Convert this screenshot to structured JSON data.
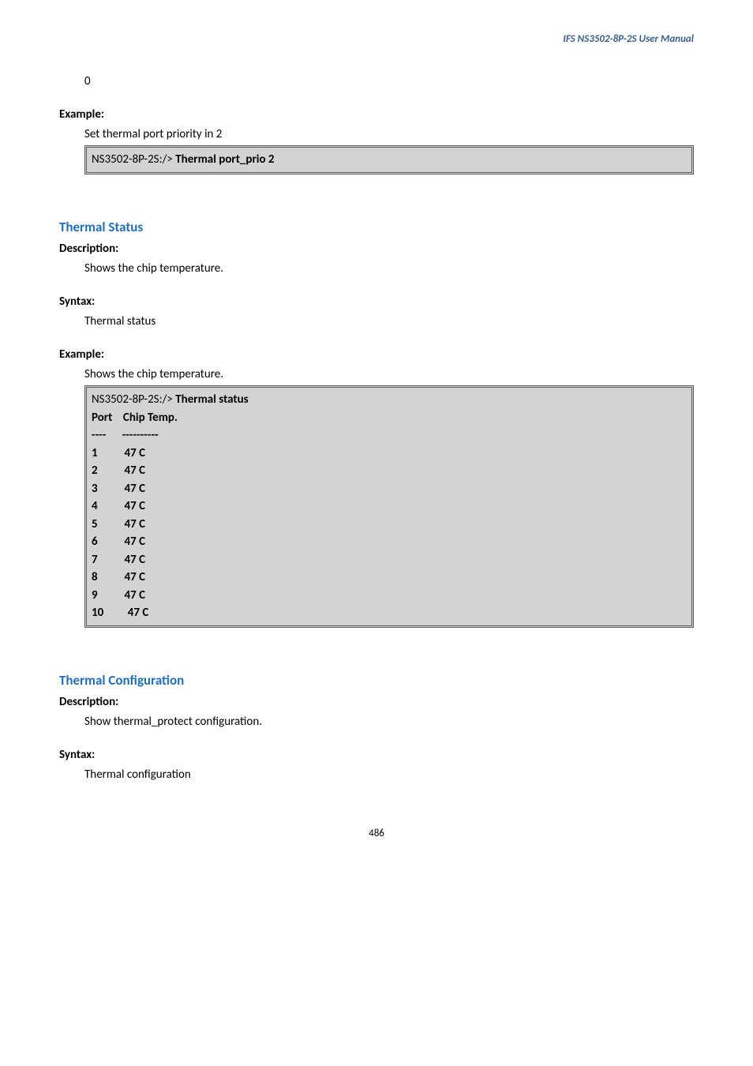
{
  "header": {
    "title": "IFS  NS3502-8P-2S  User  Manual"
  },
  "zero_line": "0",
  "section1": {
    "example_label": "Example:",
    "example_desc": "Set thermal port priority in 2",
    "codebox": {
      "prefix": "NS3502-8P-2S:/> ",
      "cmd": "Thermal port_prio 2"
    }
  },
  "section2": {
    "heading": "Thermal Status",
    "description_label": "Description:",
    "description_text": "Shows the chip temperature.",
    "syntax_label": "Syntax:",
    "syntax_text": "Thermal status",
    "example_label": "Example:",
    "example_desc": "Shows the chip temperature.",
    "codebox": {
      "prefix": "NS3502-8P-2S:/> ",
      "cmd": "Thermal status",
      "header_port": "Port",
      "header_temp": "Chip Temp.",
      "divider": "----      ----------",
      "rows": [
        {
          "port": "1",
          "temp": "47 C"
        },
        {
          "port": "2",
          "temp": "47 C"
        },
        {
          "port": "3",
          "temp": "47 C"
        },
        {
          "port": "4",
          "temp": "47 C"
        },
        {
          "port": "5",
          "temp": "47 C"
        },
        {
          "port": "6",
          "temp": "47 C"
        },
        {
          "port": "7",
          "temp": "47 C"
        },
        {
          "port": "8",
          "temp": "47 C"
        },
        {
          "port": "9",
          "temp": "47 C"
        },
        {
          "port": "10",
          "temp": "47 C"
        }
      ]
    }
  },
  "section3": {
    "heading": "Thermal Configuration",
    "description_label": "Description:",
    "description_text": "Show thermal_protect configuration.",
    "syntax_label": "Syntax:",
    "syntax_text": "Thermal configuration"
  },
  "footer": {
    "page": "486"
  },
  "style": {
    "heading_color": "#1f6fbf",
    "header_color": "#365f91",
    "codebox_bg": "#d3d3d3",
    "codebox_border": "#5a5a5a",
    "body_font_size": 15
  }
}
